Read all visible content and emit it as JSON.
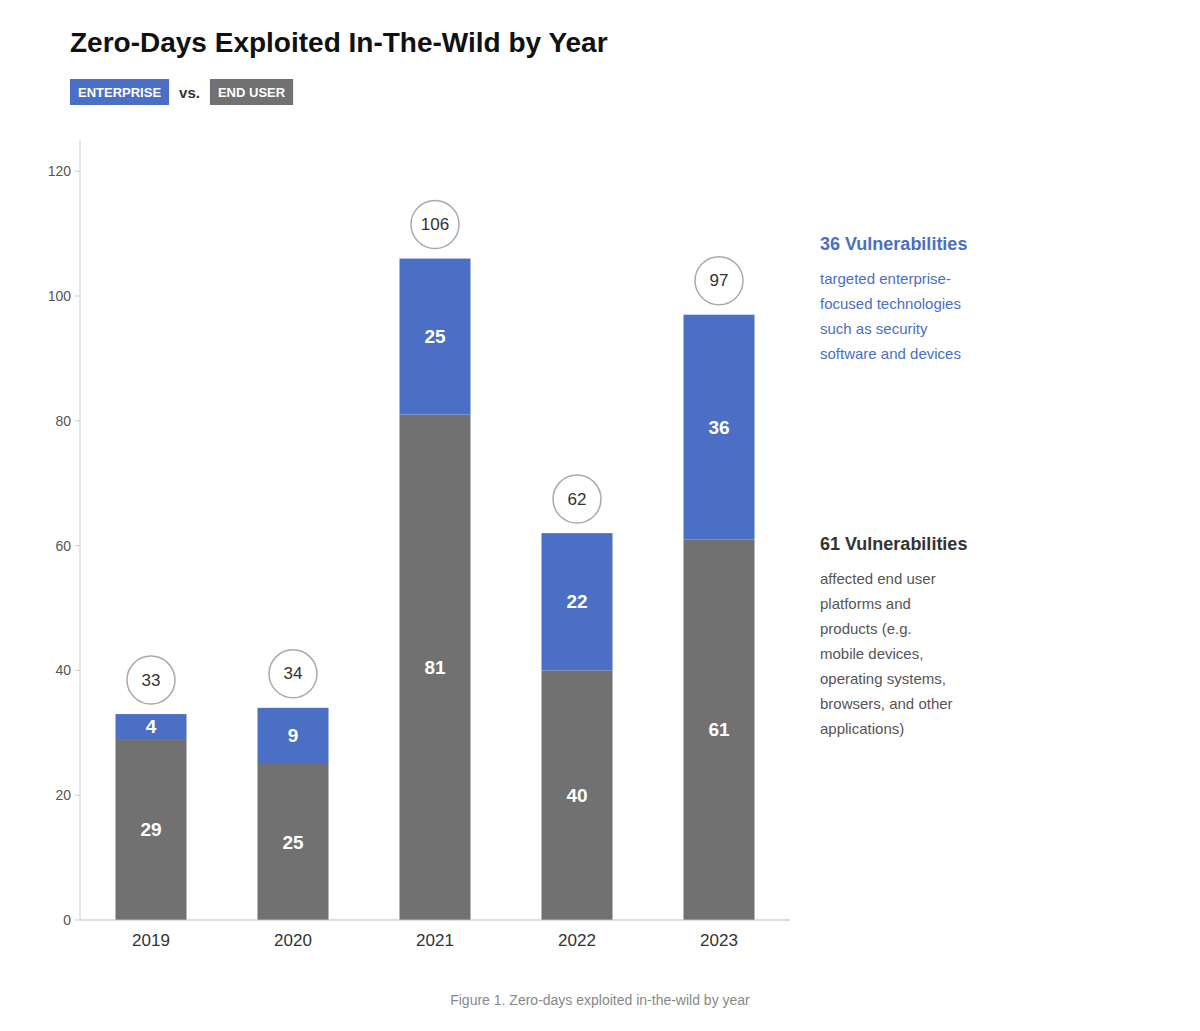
{
  "chart_data": {
    "type": "bar",
    "stacked": true,
    "data_labels": true,
    "grid": false,
    "legend": "top",
    "title": "Zero-Days Exploited In-The-Wild by Year",
    "subtitle": "vs.",
    "categories": [
      "2019",
      "2020",
      "2021",
      "2022",
      "2023"
    ],
    "series": [
      {
        "name": "END USER",
        "color": "#717171",
        "values": [
          29,
          25,
          81,
          40,
          61
        ]
      },
      {
        "name": "ENTERPRISE",
        "color": "#4a6fc4",
        "values": [
          4,
          9,
          25,
          22,
          36
        ]
      }
    ],
    "totals": [
      33,
      34,
      106,
      62,
      97
    ],
    "ylim": [
      0,
      125
    ],
    "yticks": [
      0,
      20,
      40,
      60,
      80,
      100,
      120
    ],
    "annotations": [
      {
        "title": "36 Vulnerabilities",
        "text": "targeted enterprise-\nfocused technologies\nsuch as security\nsoftware and devices",
        "color": "#4a6fc4"
      },
      {
        "title": "61 Vulnerabilities",
        "text": "affected end user\nplatforms and\nproducts (e.g.\nmobile devices,\noperating systems,\nbrowsers, and other\napplications)"
      }
    ],
    "caption": "Figure 1. Zero-days exploited in-the-wild by year"
  }
}
